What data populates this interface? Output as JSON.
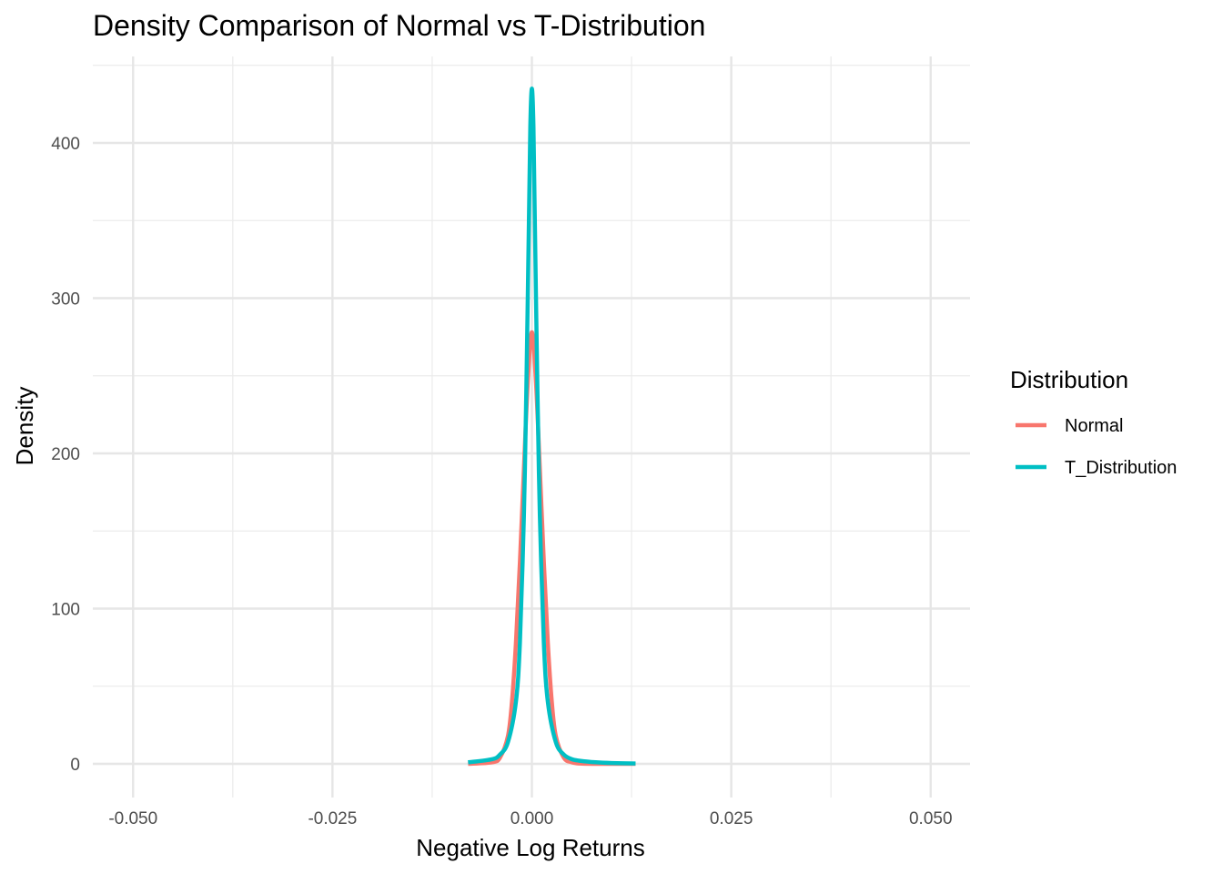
{
  "chart_data": {
    "type": "line",
    "title": "Density Comparison of Normal vs T-Distribution",
    "xlabel": "Negative Log Returns",
    "ylabel": "Density",
    "xlim": [
      -0.055,
      0.055
    ],
    "ylim": [
      -20,
      450
    ],
    "x_ticks": [
      -0.05,
      -0.025,
      0,
      0.025,
      0.05
    ],
    "x_tick_labels": [
      "-0.050",
      "-0.025",
      "0.000",
      "0.025",
      "0.050"
    ],
    "y_ticks": [
      0,
      100,
      200,
      300,
      400
    ],
    "y_tick_labels": [
      "0",
      "100",
      "200",
      "300",
      "400"
    ],
    "grid": true,
    "legend": {
      "title": "Distribution",
      "position": "right",
      "entries": [
        "Normal",
        "T_Distribution"
      ]
    },
    "series": [
      {
        "name": "Normal",
        "color": "#F8766D",
        "x": [
          -0.008,
          -0.005,
          -0.004,
          -0.003,
          -0.0025,
          -0.002,
          -0.0015,
          -0.001,
          -0.0005,
          0,
          0.0005,
          0.001,
          0.0015,
          0.002,
          0.0025,
          0.003,
          0.004,
          0.005,
          0.006,
          0.008,
          0.01,
          0.013
        ],
        "y": [
          0,
          1,
          4,
          18,
          40,
          78,
          130,
          190,
          247,
          278,
          247,
          190,
          130,
          78,
          40,
          18,
          4,
          1,
          0.2,
          0,
          0,
          0
        ]
      },
      {
        "name": "T_Distribution",
        "color": "#00BFC4",
        "x": [
          -0.008,
          -0.005,
          -0.004,
          -0.003,
          -0.002,
          -0.0015,
          -0.001,
          -0.0007,
          -0.0004,
          -0.0002,
          0,
          0.0002,
          0.0004,
          0.0007,
          0.001,
          0.0015,
          0.002,
          0.003,
          0.004,
          0.005,
          0.006,
          0.008,
          0.01,
          0.013
        ],
        "y": [
          1,
          3,
          6,
          14,
          40,
          78,
          160,
          240,
          340,
          410,
          435,
          410,
          340,
          240,
          160,
          78,
          40,
          14,
          6,
          3,
          2,
          1,
          0.5,
          0.2
        ]
      }
    ]
  }
}
